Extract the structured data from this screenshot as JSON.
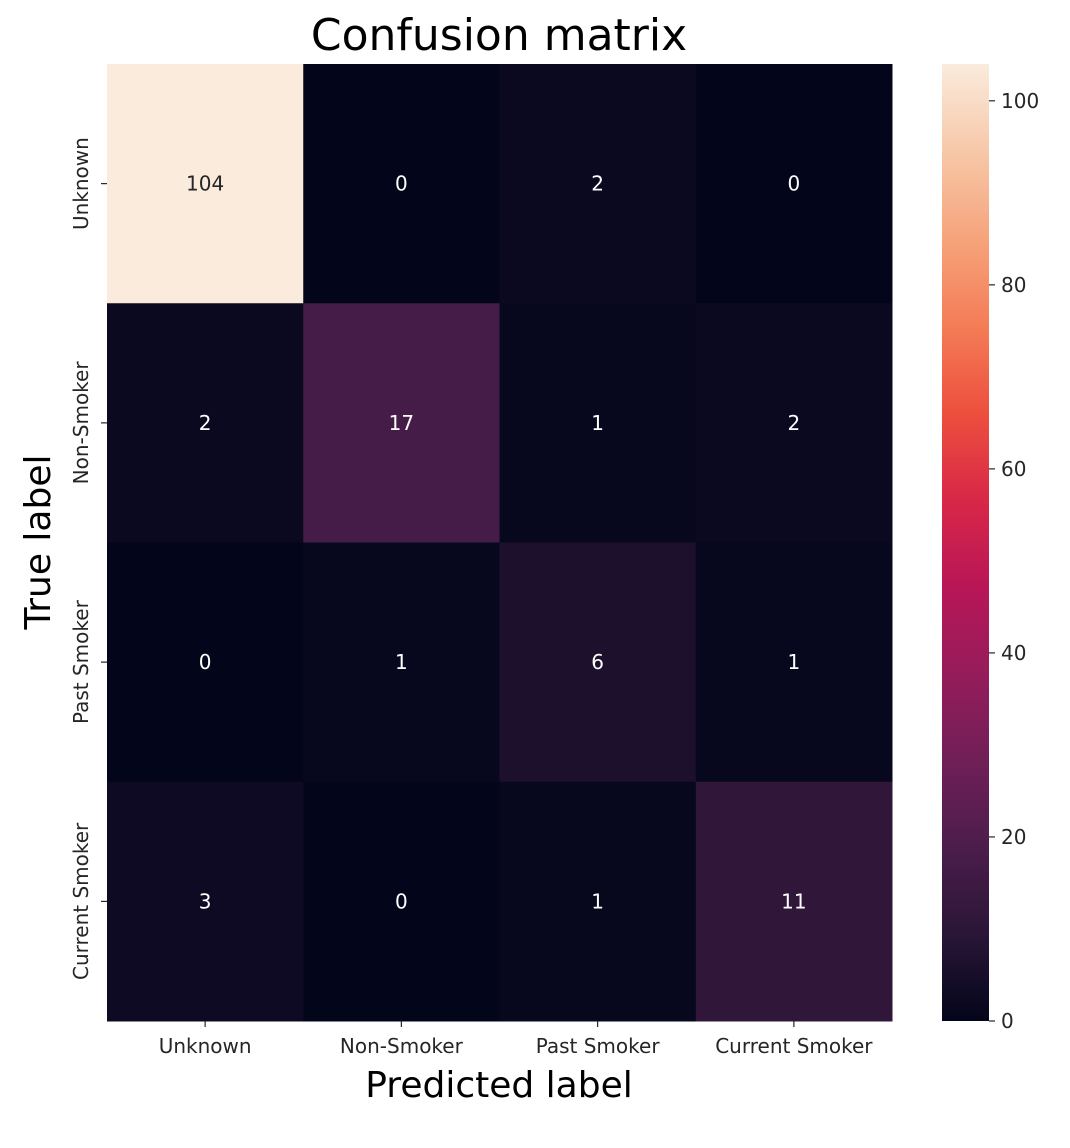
{
  "chart_data": {
    "type": "heatmap",
    "title": "Confusion matrix",
    "xlabel": "Predicted label",
    "ylabel": "True label",
    "x_categories": [
      "Unknown",
      "Non-Smoker",
      "Past Smoker",
      "Current Smoker"
    ],
    "y_categories": [
      "Unknown",
      "Non-Smoker",
      "Past Smoker",
      "Current Smoker"
    ],
    "values": [
      [
        104,
        0,
        2,
        0
      ],
      [
        2,
        17,
        1,
        2
      ],
      [
        0,
        1,
        6,
        1
      ],
      [
        3,
        0,
        1,
        11
      ]
    ],
    "colorbar": {
      "range": [
        0,
        104
      ],
      "ticks": [
        0,
        20,
        40,
        60,
        80,
        100
      ],
      "colormap": "rocket",
      "colormap_stops": [
        "#03051a",
        "#2a1637",
        "#4c1d4b",
        "#701f57",
        "#961c5b",
        "#b91657",
        "#d92847",
        "#ed503e",
        "#f47d57",
        "#f6a47c",
        "#f7c8a8",
        "#faebdd"
      ]
    },
    "grid": false,
    "legend": "colorbar-right"
  }
}
